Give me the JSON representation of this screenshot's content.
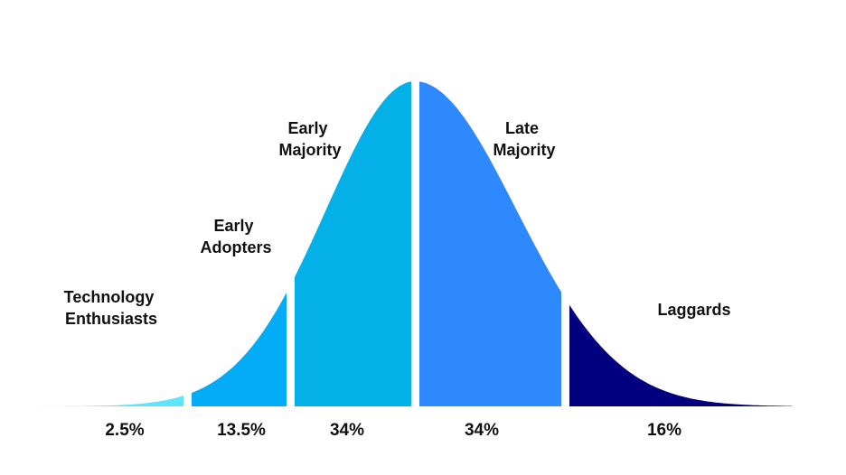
{
  "diagram": {
    "type": "adoption-bell-curve",
    "segments": [
      {
        "id": "technology-enthusiasts",
        "label_lines": [
          "Technology",
          "Enthusiasts"
        ],
        "percent_label": "2.5%",
        "share": 2.5,
        "color": "#5ee5fb"
      },
      {
        "id": "early-adopters",
        "label_lines": [
          "Early",
          "Adopters"
        ],
        "percent_label": "13.5%",
        "share": 13.5,
        "color": "#04acf7"
      },
      {
        "id": "early-majority",
        "label_lines": [
          "Early",
          "Majority"
        ],
        "percent_label": "34%",
        "share": 34,
        "color": "#03b1e8"
      },
      {
        "id": "late-majority",
        "label_lines": [
          "Late",
          "Majority"
        ],
        "percent_label": "34%",
        "share": 34,
        "color": "#2e89fe"
      },
      {
        "id": "laggards",
        "label_lines": [
          "Laggards"
        ],
        "percent_label": "16%",
        "share": 16,
        "color": "#03007f"
      }
    ]
  }
}
